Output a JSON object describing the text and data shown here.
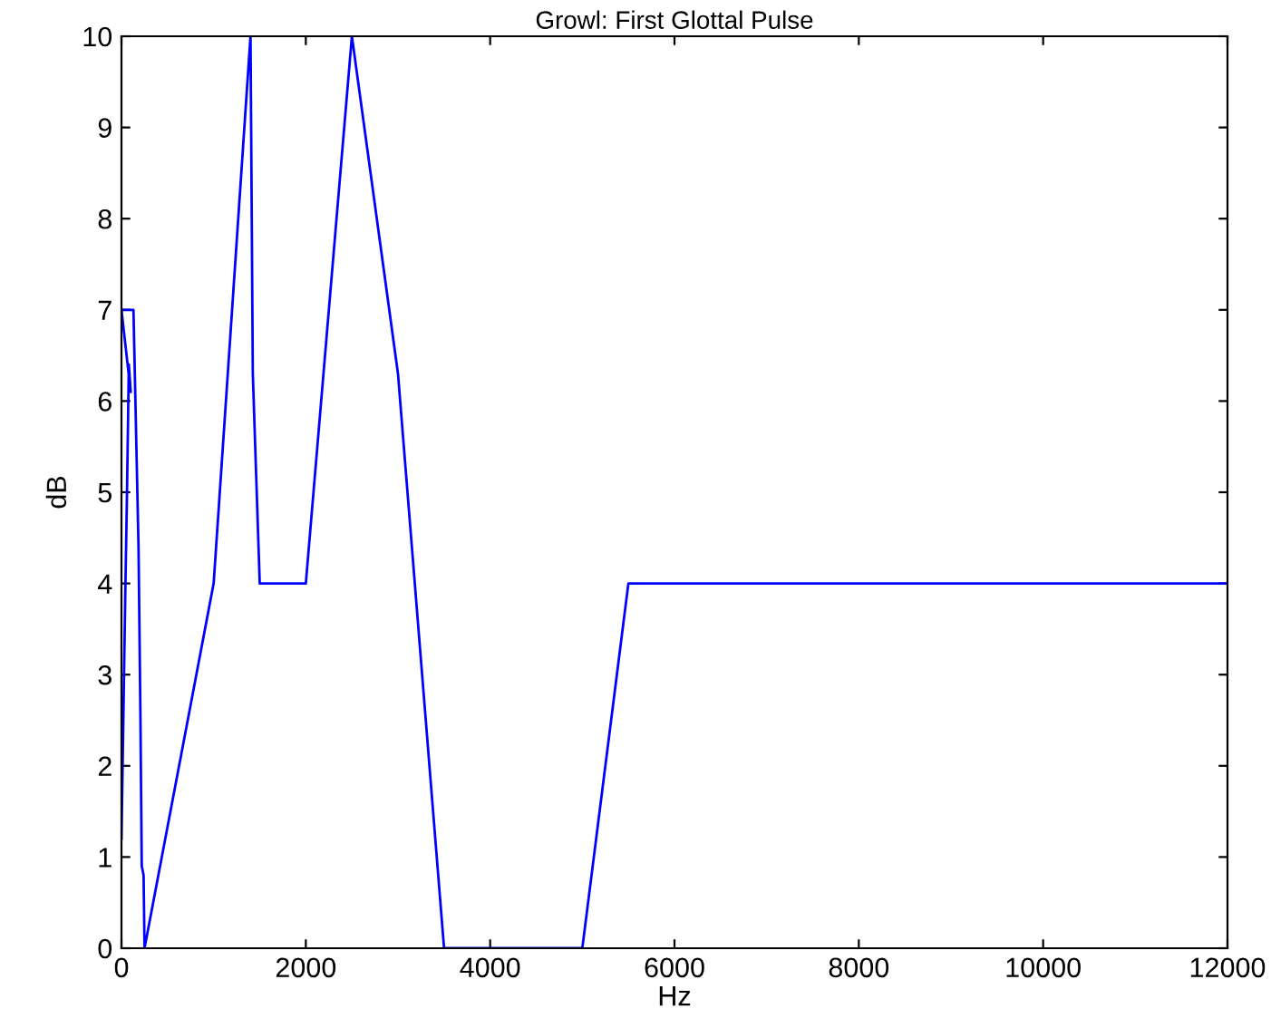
{
  "chart_data": {
    "type": "line",
    "title": "Growl: First Glottal Pulse",
    "xlabel": "Hz",
    "ylabel": "dB",
    "series": [
      {
        "color": "#0000ff",
        "x": [
          0,
          20,
          40,
          60,
          80,
          100,
          0,
          130,
          185,
          205,
          220,
          240,
          250,
          1000,
          1400,
          1425,
          1500,
          2000,
          2500,
          3000,
          3500,
          5000,
          5500,
          12000
        ],
        "values": [
          1.2,
          2.5,
          3.8,
          5,
          6.4,
          6.1,
          7,
          7,
          4.4,
          2.6,
          0.9,
          0.8,
          0,
          4,
          10,
          6.3,
          4,
          4,
          10,
          6.3,
          0,
          0,
          4,
          4
        ]
      }
    ],
    "xlim": [
      0,
      12000
    ],
    "xticks": [
      0,
      2000,
      4000,
      6000,
      8000,
      10000,
      12000
    ],
    "ylim": [
      0,
      10
    ],
    "yticks": [
      0,
      1,
      2,
      3,
      4,
      5,
      6,
      7,
      8,
      9,
      10
    ],
    "grid": false,
    "marker": "none",
    "line_style": "solid"
  }
}
